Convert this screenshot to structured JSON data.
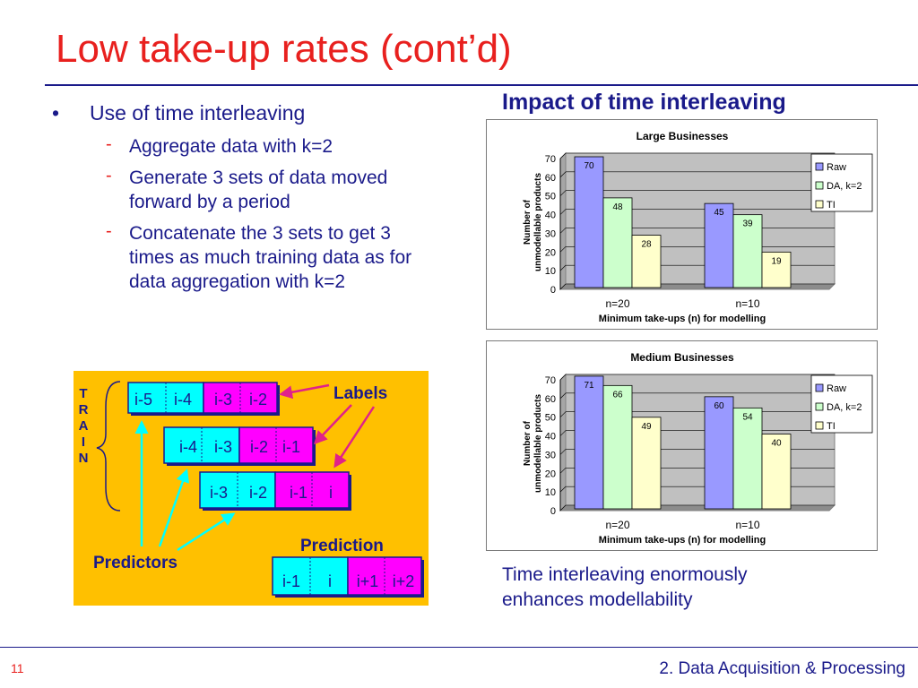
{
  "slide": {
    "title": "Low take-up rates (cont’d)",
    "bullet": "Use of time interleaving",
    "subbullets": [
      "Aggregate data with k=2",
      "Generate 3 sets of data moved forward by a period",
      "Concatenate the 3 sets to get 3 times as much training data as for data aggregation with k=2"
    ],
    "chart_heading": "Impact of time interleaving",
    "caption": "Time interleaving enormously enhances modellability",
    "page_number": "11",
    "footer": "2. Data Acquisition & Processing"
  },
  "diagram": {
    "train_letters": [
      "T",
      "R",
      "A",
      "I",
      "N"
    ],
    "rows": [
      [
        "i-5",
        "i-4",
        "i-3",
        "i-2"
      ],
      [
        "i-4",
        "i-3",
        "i-2",
        "i-1"
      ],
      [
        "i-3",
        "i-2",
        "i-1",
        "i"
      ]
    ],
    "prediction_row": [
      "i-1",
      "i",
      "i+1",
      "i+2"
    ],
    "labels_text": "Labels",
    "predictors_text": "Predictors",
    "prediction_text": "Prediction",
    "colors": {
      "predictor": "#00ffff",
      "label": "#ff00ff",
      "background": "#ffc000",
      "arrow": "#e0218a"
    }
  },
  "chart_data": [
    {
      "type": "bar",
      "title": "Large Businesses",
      "categories": [
        "n=20",
        "n=10"
      ],
      "series": [
        {
          "name": "Raw",
          "values": [
            70,
            45
          ],
          "color": "#9999ff"
        },
        {
          "name": "DA, k=2",
          "values": [
            48,
            39
          ],
          "color": "#ccffcc"
        },
        {
          "name": "TI",
          "values": [
            28,
            19
          ],
          "color": "#ffffcc"
        }
      ],
      "xlabel": "Minimum take-ups (n) for modelling",
      "ylabel": "Number of unmodellable products",
      "ylim": [
        0,
        70
      ],
      "yticks": [
        0,
        10,
        20,
        30,
        40,
        50,
        60,
        70
      ],
      "grid": true,
      "legend": "right"
    },
    {
      "type": "bar",
      "title": "Medium Businesses",
      "categories": [
        "n=20",
        "n=10"
      ],
      "series": [
        {
          "name": "Raw",
          "values": [
            71,
            60
          ],
          "color": "#9999ff"
        },
        {
          "name": "DA, k=2",
          "values": [
            66,
            54
          ],
          "color": "#ccffcc"
        },
        {
          "name": "TI",
          "values": [
            49,
            40
          ],
          "color": "#ffffcc"
        }
      ],
      "xlabel": "Minimum take-ups (n) for modelling",
      "ylabel": "Number of unmodellable products",
      "ylim": [
        0,
        70
      ],
      "yticks": [
        0,
        10,
        20,
        30,
        40,
        50,
        60,
        70
      ],
      "grid": true,
      "legend": "right"
    }
  ]
}
